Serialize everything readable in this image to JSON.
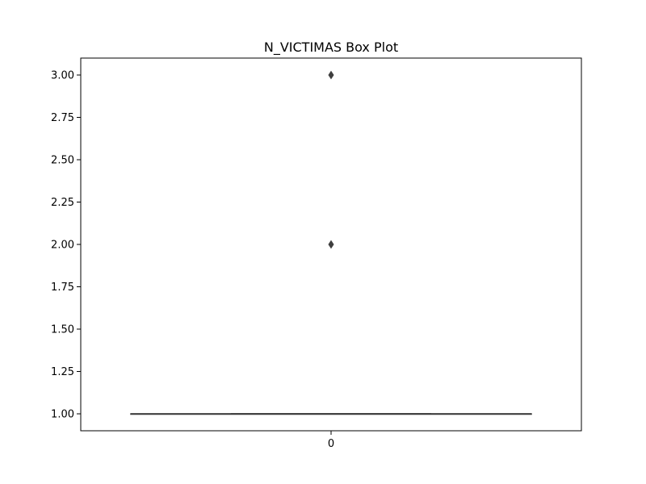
{
  "chart_data": {
    "type": "box",
    "title": "N_VICTIMAS Box Plot",
    "xlabel": "",
    "ylabel": "",
    "categories": [
      "0"
    ],
    "ylim": [
      0.9,
      3.1
    ],
    "yticks": [
      1.0,
      1.25,
      1.5,
      1.75,
      2.0,
      2.25,
      2.5,
      2.75,
      3.0
    ],
    "ytick_labels": [
      "1.00",
      "1.25",
      "1.50",
      "1.75",
      "2.00",
      "2.25",
      "2.50",
      "2.75",
      "3.00"
    ],
    "boxes": [
      {
        "category": "0",
        "min": 1.0,
        "q1": 1.0,
        "median": 1.0,
        "q3": 1.0,
        "max": 1.0,
        "outliers": [
          2.0,
          3.0
        ]
      }
    ],
    "grid": false,
    "colors": {
      "box": "#3f3f3f",
      "outlier": "#3f3f3f",
      "axes": "#000000"
    }
  }
}
